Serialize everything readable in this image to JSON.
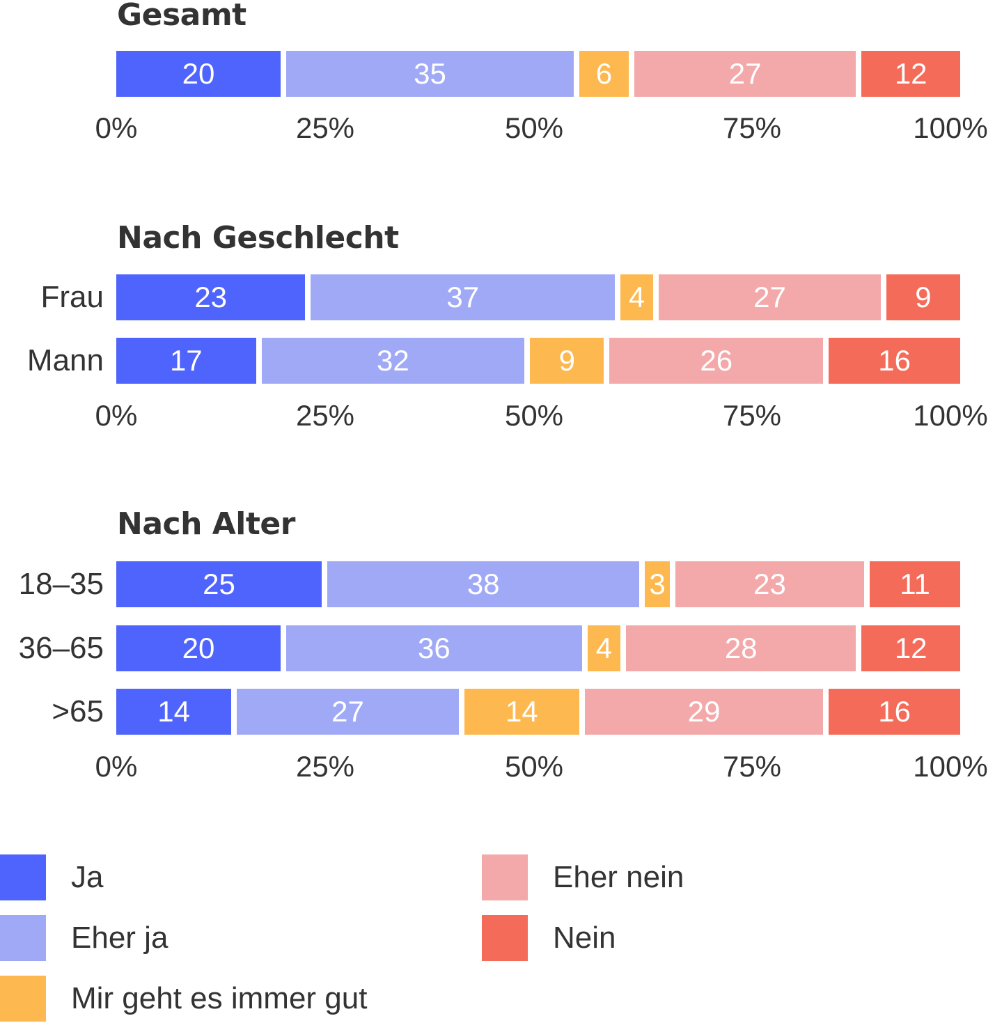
{
  "chart_data": {
    "type": "bar",
    "orientation": "horizontal",
    "stacked": true,
    "percent": true,
    "xlim": [
      0,
      100
    ],
    "xticks": [
      "0%",
      "25%",
      "50%",
      "75%",
      "100%"
    ],
    "series": [
      {
        "name": "Ja",
        "color": "#4f63fd"
      },
      {
        "name": "Eher ja",
        "color": "#a0a9f6"
      },
      {
        "name": "Mir geht es immer gut",
        "color": "#fdb94f"
      },
      {
        "name": "Eher nein",
        "color": "#f3a9aa"
      },
      {
        "name": "Nein",
        "color": "#f46b59"
      }
    ],
    "groups": [
      {
        "title": "Gesamt",
        "rows": [
          {
            "label": "",
            "values": [
              20,
              35,
              6,
              27,
              12
            ]
          }
        ]
      },
      {
        "title": "Nach Geschlecht",
        "rows": [
          {
            "label": "Frau",
            "values": [
              23,
              37,
              4,
              27,
              9
            ]
          },
          {
            "label": "Mann",
            "values": [
              17,
              32,
              9,
              26,
              16
            ]
          }
        ]
      },
      {
        "title": "Nach Alter",
        "rows": [
          {
            "label": "18–35",
            "values": [
              25,
              38,
              3,
              23,
              11
            ]
          },
          {
            "label": "36–65",
            "values": [
              20,
              36,
              4,
              28,
              12
            ]
          },
          {
            "label": ">65",
            "values": [
              14,
              27,
              14,
              29,
              16
            ]
          }
        ]
      }
    ],
    "legend": {
      "placement": "bottom",
      "columns": [
        [
          "Ja",
          "Eher ja",
          "Mir geht es immer gut"
        ],
        [
          "Eher nein",
          "Nein"
        ]
      ]
    }
  }
}
